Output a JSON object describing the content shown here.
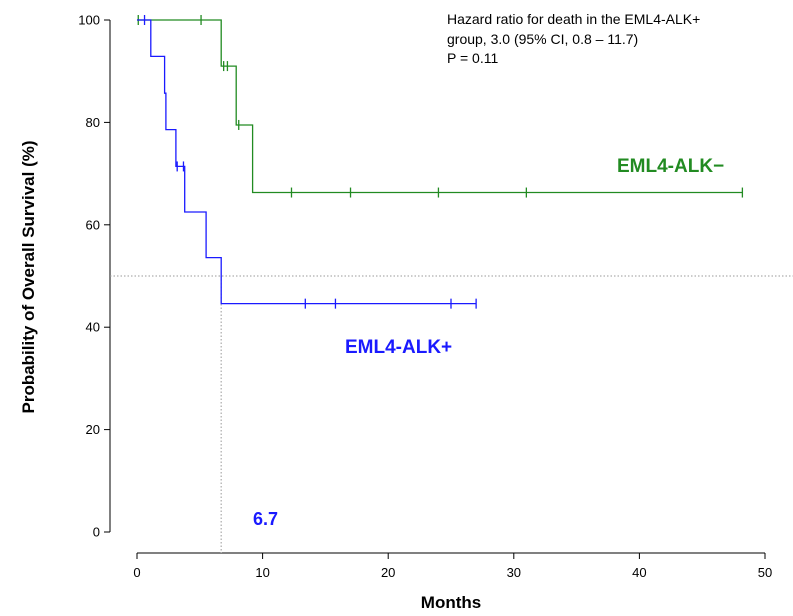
{
  "chart_data": {
    "type": "line",
    "title": "",
    "xlabel": "Months",
    "ylabel": "Probability of Overall Survival (%)",
    "xlim": [
      0,
      50
    ],
    "ylim": [
      0,
      100
    ],
    "x_ticks": [
      0,
      10,
      20,
      30,
      40,
      50
    ],
    "y_ticks": [
      0,
      20,
      40,
      60,
      80,
      100
    ],
    "grid": false,
    "annotation": [
      "Hazard ratio for death in the EML4-ALK+",
      "group, 3.0 (95% CI, 0.8 – 11.7)",
      "P = 0.11"
    ],
    "reference_lines": {
      "horizontal_y": 50,
      "vertical_x": 6.7
    },
    "median_label": "6.7",
    "series": [
      {
        "name": "EML4-ALK−",
        "color": "#228b22",
        "steps": [
          [
            0,
            100
          ],
          [
            6.7,
            100
          ],
          [
            6.7,
            91
          ],
          [
            7.9,
            91
          ],
          [
            7.9,
            79.5
          ],
          [
            9.2,
            79.5
          ],
          [
            9.2,
            66.3
          ],
          [
            48.2,
            66.3
          ]
        ],
        "censored": [
          [
            0.1,
            100
          ],
          [
            5.1,
            100
          ],
          [
            6.9,
            91
          ],
          [
            7.2,
            91
          ],
          [
            8.1,
            79.5
          ],
          [
            12.3,
            66.3
          ],
          [
            17.0,
            66.3
          ],
          [
            24.0,
            66.3
          ],
          [
            31.0,
            66.3
          ],
          [
            48.2,
            66.3
          ]
        ]
      },
      {
        "name": "EML4-ALK+",
        "color": "#1a1aff",
        "steps": [
          [
            0,
            100
          ],
          [
            1.1,
            100
          ],
          [
            1.1,
            92.9
          ],
          [
            2.2,
            92.9
          ],
          [
            2.2,
            85.7
          ],
          [
            2.3,
            85.7
          ],
          [
            2.3,
            78.6
          ],
          [
            3.1,
            78.6
          ],
          [
            3.1,
            71.4
          ],
          [
            3.8,
            71.4
          ],
          [
            3.8,
            62.5
          ],
          [
            5.5,
            62.5
          ],
          [
            5.5,
            53.6
          ],
          [
            6.7,
            53.6
          ],
          [
            6.7,
            44.6
          ],
          [
            27.0,
            44.6
          ]
        ],
        "censored": [
          [
            0.6,
            100
          ],
          [
            3.2,
            71.4
          ],
          [
            3.7,
            71.4
          ],
          [
            13.4,
            44.6
          ],
          [
            15.8,
            44.6
          ],
          [
            25.0,
            44.6
          ],
          [
            27.0,
            44.6
          ]
        ]
      }
    ]
  }
}
